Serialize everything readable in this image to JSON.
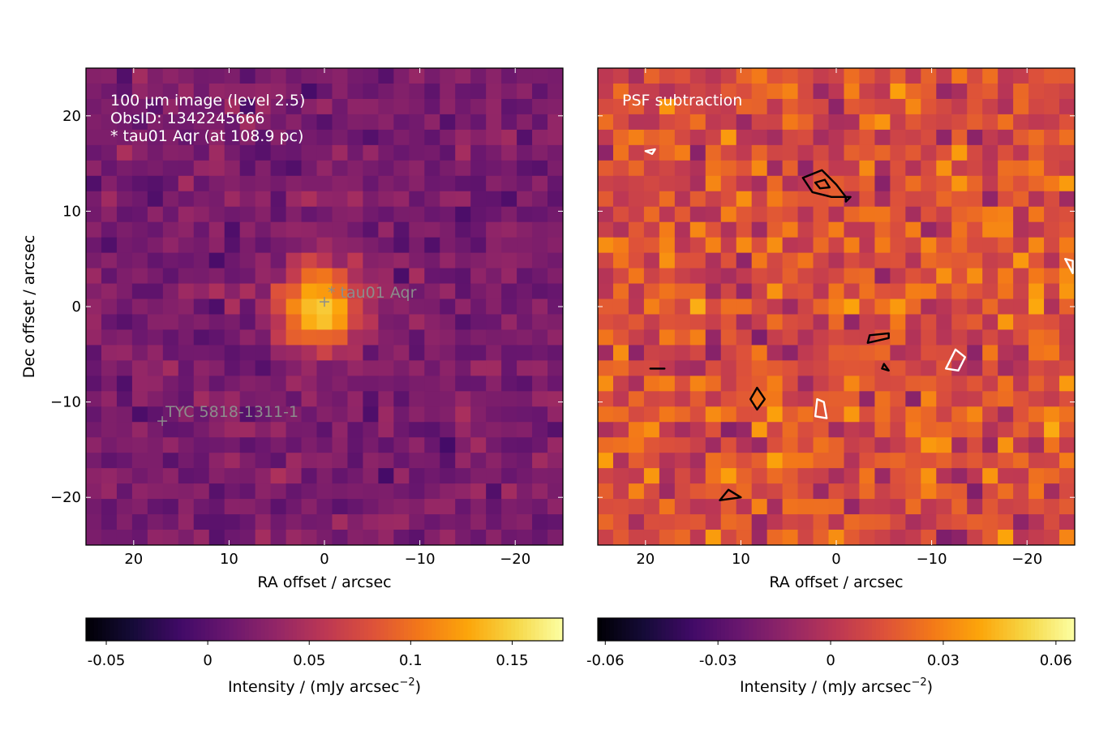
{
  "chart_data": [
    {
      "type": "heatmap",
      "panel": "left",
      "colormap": "inferno",
      "grid": false,
      "xlabel": "RA offset / arcsec",
      "ylabel": "Dec offset / arcsec",
      "xlim": [
        25,
        -25
      ],
      "ylim": [
        -25,
        25
      ],
      "xticks": [
        20,
        10,
        0,
        -10,
        -20
      ],
      "xtick_labels": [
        "20",
        "10",
        "0",
        "−10",
        "−20"
      ],
      "yticks": [
        20,
        10,
        0,
        -10,
        -20
      ],
      "ytick_labels": [
        "20",
        "10",
        "0",
        "−10",
        "−20"
      ],
      "pixel_size_arcsec": 1.6,
      "n_pixels": 31,
      "annotations": [
        "100 µm image (level 2.5)",
        "ObsID: 1342245666",
        "* tau01 Aqr (at 108.9 pc)"
      ],
      "markers": [
        {
          "label": "* tau01 Aqr",
          "x": 0,
          "y": 0.5,
          "symbol": "+"
        },
        {
          "label": "TYC 5818-1311-1",
          "x": 17,
          "y": -12,
          "symbol": "+"
        }
      ],
      "source_peak": {
        "x": 0.5,
        "y": 0.0,
        "value": 0.16,
        "fwhm_arcsec": 7
      },
      "colorbar": {
        "label": "Intensity / (mJy arcsec⁻²)",
        "label_main": "Intensity / (mJy arcsec",
        "label_exp": "−2",
        "label_close": ")",
        "vmin": -0.06,
        "vmax": 0.175,
        "ticks": [
          -0.05,
          0,
          0.05,
          0.1,
          0.15
        ],
        "tick_labels": [
          "-0.05",
          "0",
          "0.05",
          "0.1",
          "0.15"
        ]
      }
    },
    {
      "type": "heatmap",
      "panel": "right",
      "colormap": "inferno",
      "grid": false,
      "xlabel": "RA offset / arcsec",
      "ylabel": "",
      "xlim": [
        25,
        -25
      ],
      "ylim": [
        -25,
        25
      ],
      "xticks": [
        20,
        10,
        0,
        -10,
        -20
      ],
      "xtick_labels": [
        "20",
        "10",
        "0",
        "−10",
        "−20"
      ],
      "pixel_size_arcsec": 1.6,
      "n_pixels": 31,
      "annotations": [
        "PSF subtraction"
      ],
      "contours": [
        {
          "color": "#000000",
          "points": [
            [
              3.5,
              13.5
            ],
            [
              1.5,
              14.3
            ],
            [
              0.0,
              12.8
            ],
            [
              -1.0,
              11.5
            ],
            [
              -1.0,
              11.0
            ],
            [
              -1.5,
              11.5
            ],
            [
              0.5,
              11.5
            ],
            [
              2.5,
              12.0
            ]
          ]
        },
        {
          "color": "#000000",
          "points": [
            [
              2.2,
              13.0
            ],
            [
              1.2,
              13.3
            ],
            [
              0.7,
              12.5
            ],
            [
              1.7,
              12.4
            ]
          ]
        },
        {
          "color": "#000000",
          "points": [
            [
              -3.3,
              -3.8
            ],
            [
              -5.5,
              -3.3
            ],
            [
              -5.5,
              -2.8
            ],
            [
              -3.5,
              -3.0
            ]
          ]
        },
        {
          "color": "#000000",
          "points": [
            [
              -5.0,
              -6.0
            ],
            [
              -5.5,
              -6.7
            ],
            [
              -4.8,
              -6.5
            ]
          ]
        },
        {
          "color": "#000000",
          "points": [
            [
              8.3,
              -8.5
            ],
            [
              7.5,
              -9.7
            ],
            [
              8.3,
              -10.8
            ],
            [
              9.0,
              -9.7
            ]
          ]
        },
        {
          "color": "#000000",
          "points": [
            [
              11.3,
              -19.2
            ],
            [
              12.2,
              -20.3
            ],
            [
              10.0,
              -20.0
            ]
          ]
        },
        {
          "color": "#000000",
          "points": [
            [
              19.5,
              -6.5
            ],
            [
              18.0,
              -6.5
            ]
          ]
        },
        {
          "color": "#ffffff",
          "points": [
            [
              -12.5,
              -4.5
            ],
            [
              -13.5,
              -5.3
            ],
            [
              -12.8,
              -6.7
            ],
            [
              -11.5,
              -6.5
            ]
          ]
        },
        {
          "color": "#ffffff",
          "points": [
            [
              2.0,
              -9.7
            ],
            [
              1.3,
              -10.0
            ],
            [
              1.0,
              -11.7
            ],
            [
              2.2,
              -11.5
            ]
          ]
        },
        {
          "color": "#ffffff",
          "points": [
            [
              19.0,
              16.5
            ],
            [
              20.0,
              16.3
            ],
            [
              19.3,
              16.0
            ]
          ]
        },
        {
          "color": "#ffffff",
          "points": [
            [
              -24.0,
              5.0
            ],
            [
              -24.8,
              3.5
            ],
            [
              -24.8,
              4.8
            ]
          ]
        }
      ],
      "colorbar": {
        "label": "Intensity / (mJy arcsec⁻²)",
        "label_main": "Intensity / (mJy arcsec",
        "label_exp": "−2",
        "label_close": ")",
        "vmin": -0.062,
        "vmax": 0.065,
        "ticks": [
          -0.06,
          -0.03,
          0,
          0.03,
          0.06
        ],
        "tick_labels": [
          "-0.06",
          "-0.03",
          "0",
          "0.03",
          "0.06"
        ]
      }
    }
  ]
}
